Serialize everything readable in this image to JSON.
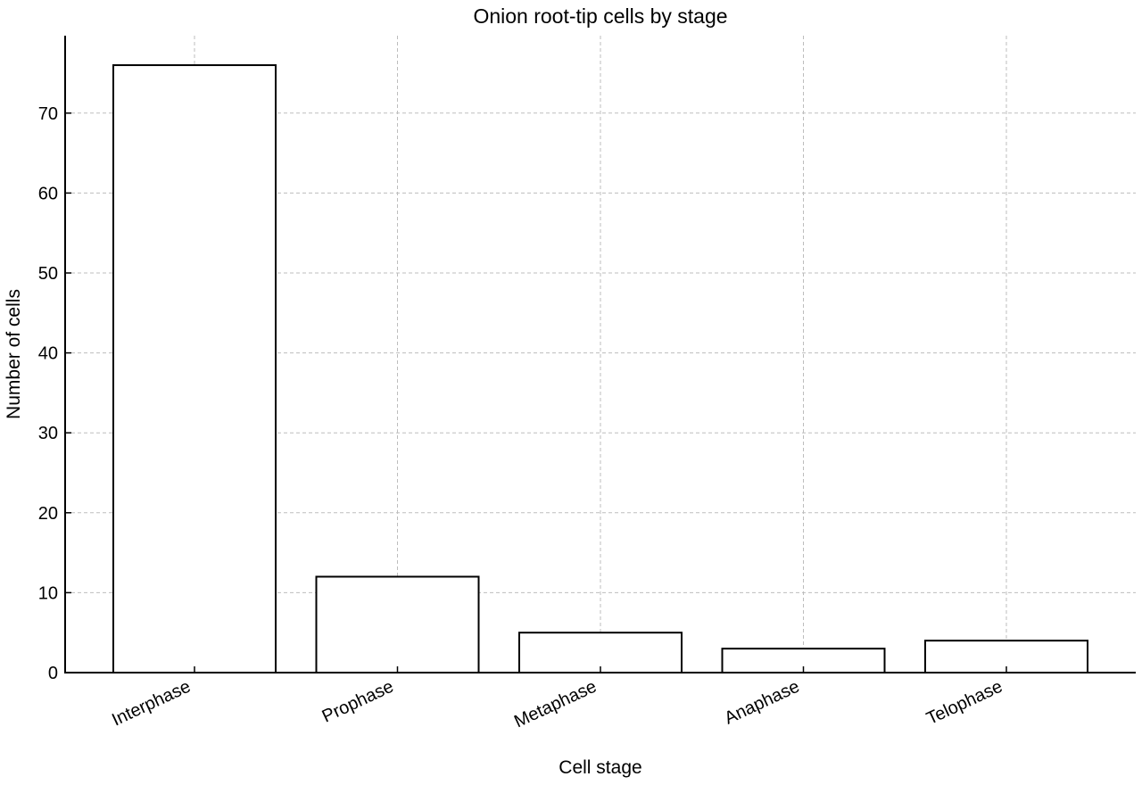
{
  "chart_data": {
    "type": "bar",
    "title": "Onion root-tip cells by stage",
    "xlabel": "Cell stage",
    "ylabel": "Number of cells",
    "categories": [
      "Interphase",
      "Prophase",
      "Metaphase",
      "Anaphase",
      "Telophase"
    ],
    "values": [
      76,
      12,
      5,
      3,
      4
    ],
    "ylim": [
      0,
      80
    ],
    "yticks": [
      "0",
      "10",
      "20",
      "30",
      "40",
      "50",
      "60",
      "70"
    ],
    "grid": true,
    "bar_fill": "#ffffff",
    "bar_edge": "#000000"
  }
}
